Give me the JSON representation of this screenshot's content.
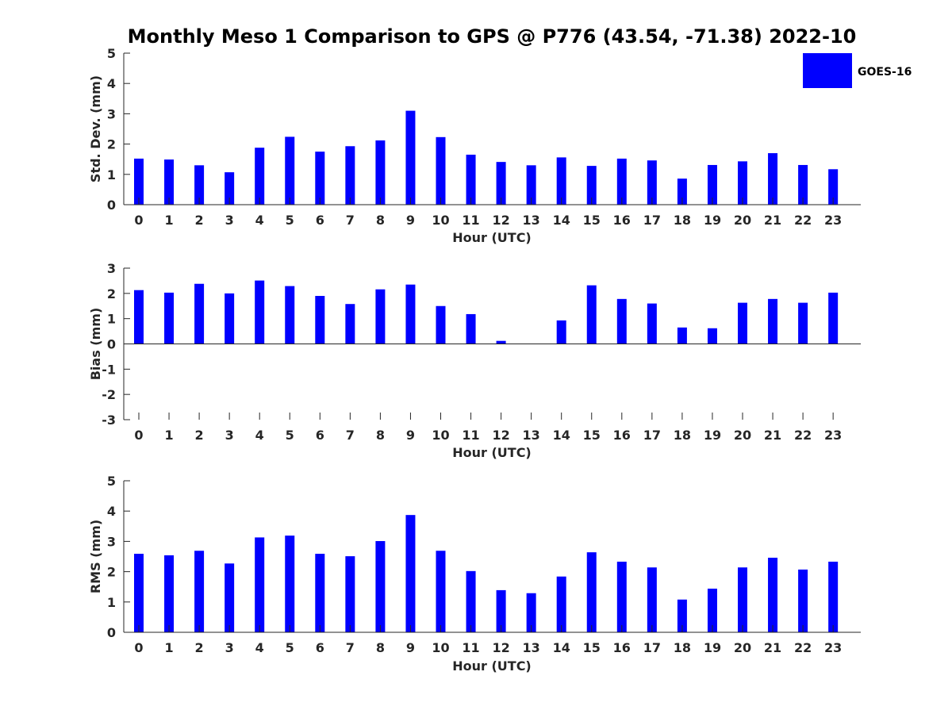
{
  "title": "Monthly Meso 1 Comparison to GPS @ P776 (43.54, -71.38) 2022-10",
  "legend": {
    "label": "GOES-16",
    "color": "#0000ff"
  },
  "chart_data": [
    {
      "type": "bar",
      "categories": [
        "0",
        "1",
        "2",
        "3",
        "4",
        "5",
        "6",
        "7",
        "8",
        "9",
        "10",
        "11",
        "12",
        "13",
        "14",
        "15",
        "16",
        "17",
        "18",
        "19",
        "20",
        "21",
        "22",
        "23"
      ],
      "series": [
        {
          "name": "GOES-16",
          "values": [
            1.52,
            1.49,
            1.3,
            1.07,
            1.88,
            2.24,
            1.75,
            1.93,
            2.12,
            3.1,
            2.23,
            1.65,
            1.41,
            1.3,
            1.56,
            1.28,
            1.52,
            1.46,
            0.86,
            1.31,
            1.43,
            1.7,
            1.31,
            1.17
          ]
        }
      ],
      "xlabel": "Hour (UTC)",
      "ylabel": "Std. Dev. (mm)",
      "ylim": [
        0,
        5
      ],
      "yticks": [
        "0",
        "1",
        "2",
        "3",
        "4",
        "5"
      ],
      "grid": false,
      "legend_position": "top-right"
    },
    {
      "type": "bar",
      "categories": [
        "0",
        "1",
        "2",
        "3",
        "4",
        "5",
        "6",
        "7",
        "8",
        "9",
        "10",
        "11",
        "12",
        "13",
        "14",
        "15",
        "16",
        "17",
        "18",
        "19",
        "20",
        "21",
        "22",
        "23"
      ],
      "series": [
        {
          "name": "GOES-16",
          "values": [
            2.13,
            2.03,
            2.38,
            2.0,
            2.51,
            2.29,
            1.9,
            1.58,
            2.16,
            2.35,
            1.5,
            1.18,
            0.12,
            0.0,
            0.93,
            2.32,
            1.78,
            1.6,
            0.65,
            0.62,
            1.63,
            1.78,
            1.63,
            2.03
          ]
        }
      ],
      "xlabel": "Hour (UTC)",
      "ylabel": "Bias (mm)",
      "ylim": [
        -3,
        3
      ],
      "yticks": [
        "-3",
        "-2",
        "-1",
        "0",
        "1",
        "2",
        "3"
      ],
      "grid": false
    },
    {
      "type": "bar",
      "categories": [
        "0",
        "1",
        "2",
        "3",
        "4",
        "5",
        "6",
        "7",
        "8",
        "9",
        "10",
        "11",
        "12",
        "13",
        "14",
        "15",
        "16",
        "17",
        "18",
        "19",
        "20",
        "21",
        "22",
        "23"
      ],
      "series": [
        {
          "name": "GOES-16",
          "values": [
            2.59,
            2.54,
            2.69,
            2.27,
            3.13,
            3.19,
            2.59,
            2.51,
            3.01,
            3.87,
            2.69,
            2.02,
            1.39,
            1.29,
            1.84,
            2.64,
            2.33,
            2.14,
            1.08,
            1.44,
            2.14,
            2.46,
            2.07,
            2.33
          ]
        }
      ],
      "xlabel": "Hour (UTC)",
      "ylabel": "RMS (mm)",
      "ylim": [
        0,
        5
      ],
      "yticks": [
        "0",
        "1",
        "2",
        "3",
        "4",
        "5"
      ],
      "grid": false
    }
  ]
}
